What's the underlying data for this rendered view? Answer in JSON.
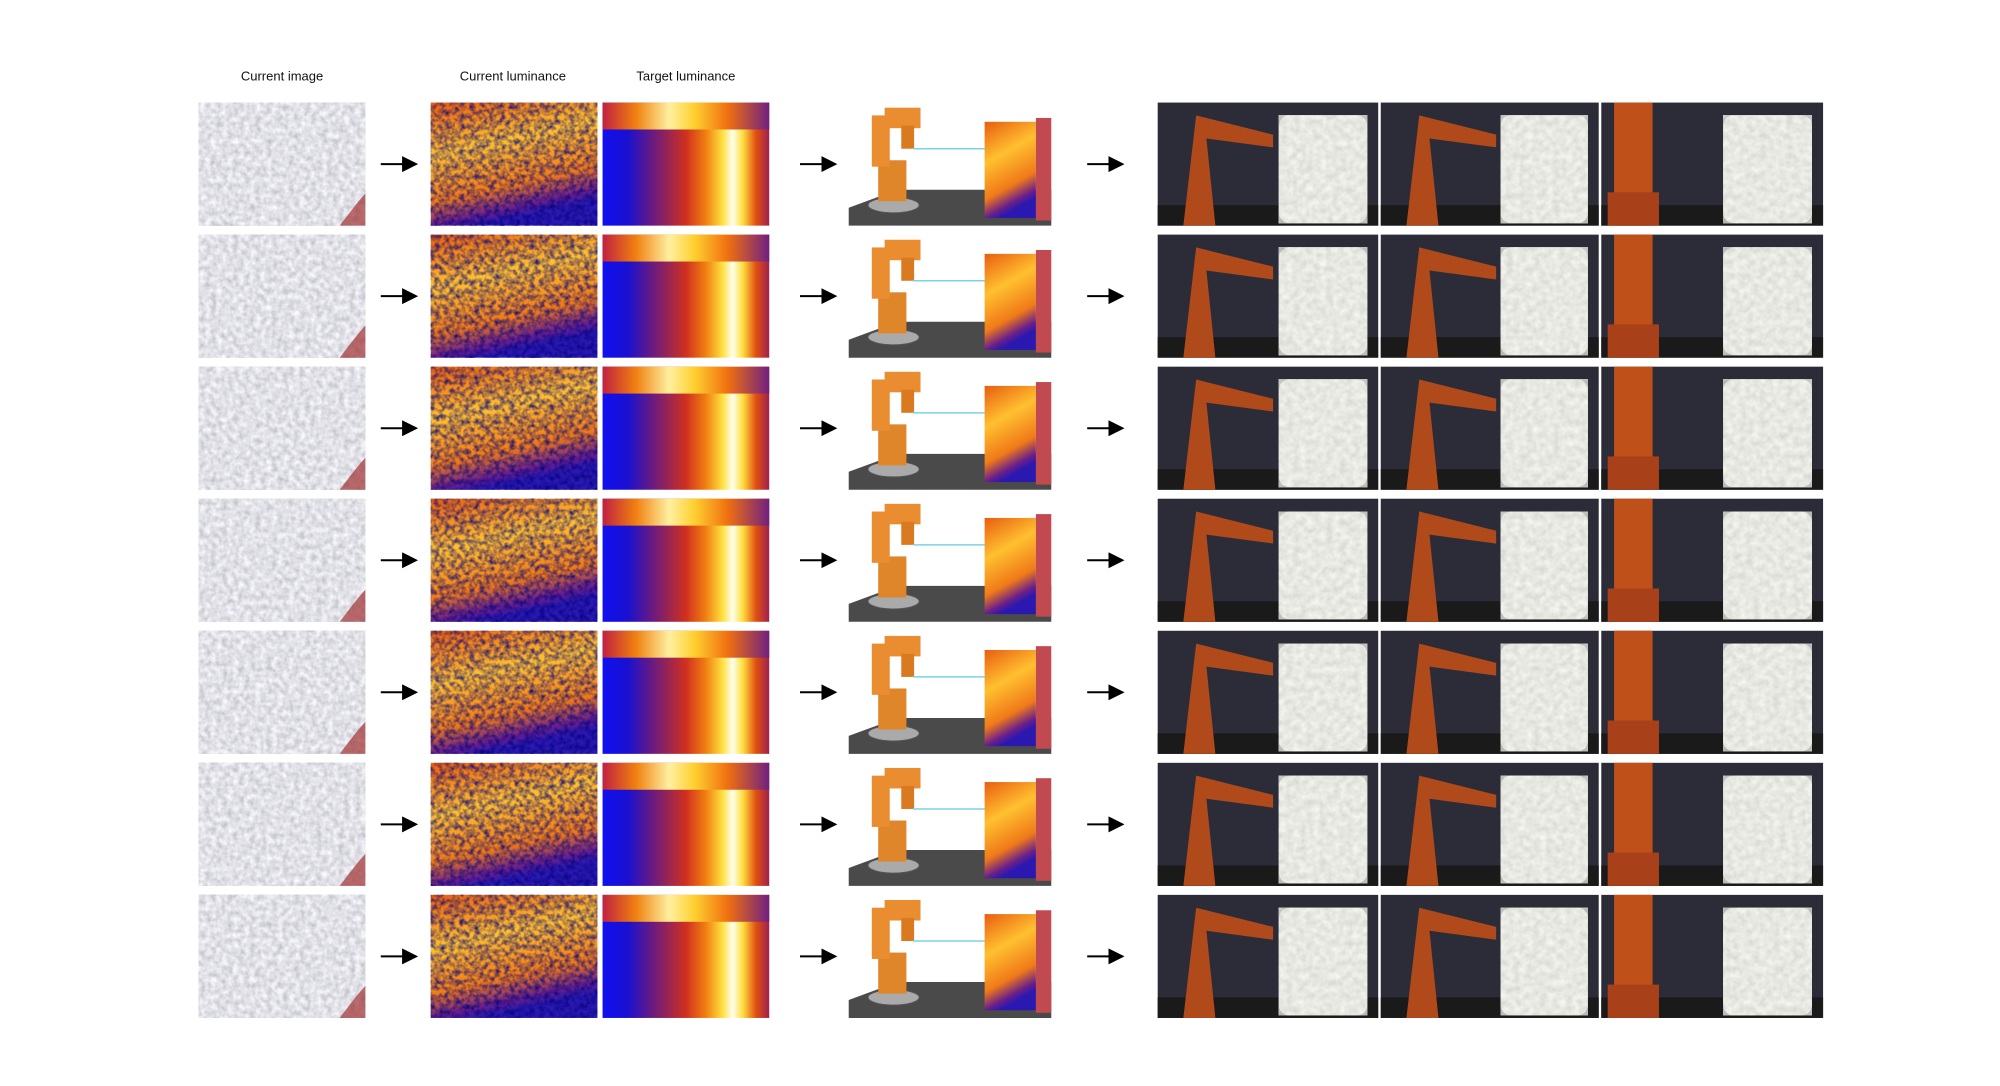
{
  "header": {
    "labels": [
      "Current image",
      "Current luminance",
      "Target luminance"
    ]
  }
}
